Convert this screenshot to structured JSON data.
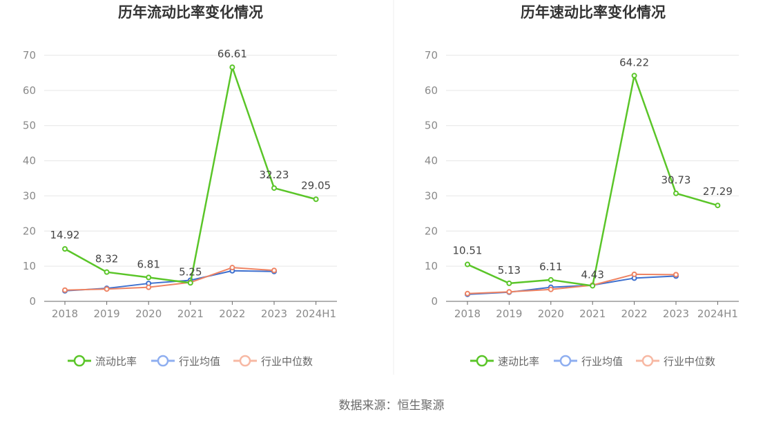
{
  "chart_data": [
    {
      "type": "line",
      "title": "历年流动比率变化情况",
      "categories": [
        "2018",
        "2019",
        "2020",
        "2021",
        "2022",
        "2023",
        "2024H1"
      ],
      "ylim": [
        0,
        70
      ],
      "yticks": [
        0,
        10,
        20,
        30,
        40,
        50,
        60,
        70
      ],
      "grid": true,
      "legend_position": "bottom",
      "series": [
        {
          "name": "流动比率",
          "color": "#5ac528",
          "values": [
            14.92,
            8.32,
            6.81,
            5.25,
            66.61,
            32.23,
            29.05
          ],
          "labels": [
            "14.92",
            "8.32",
            "6.81",
            "5.25",
            "66.61",
            "32.23",
            "29.05"
          ]
        },
        {
          "name": "行业均值",
          "color": "#3d6fce",
          "legend_color": "#8eaef0",
          "values": [
            3.0,
            3.7,
            5.1,
            6.0,
            8.7,
            8.5,
            null
          ]
        },
        {
          "name": "行业中位数",
          "color": "#ee8363",
          "legend_color": "#f7b8a3",
          "values": [
            3.2,
            3.5,
            4.0,
            5.4,
            9.6,
            8.8,
            null
          ]
        }
      ]
    },
    {
      "type": "line",
      "title": "历年速动比率变化情况",
      "categories": [
        "2018",
        "2019",
        "2020",
        "2021",
        "2022",
        "2023",
        "2024H1"
      ],
      "ylim": [
        0,
        70
      ],
      "yticks": [
        0,
        10,
        20,
        30,
        40,
        50,
        60,
        70
      ],
      "grid": true,
      "legend_position": "bottom",
      "series": [
        {
          "name": "速动比率",
          "color": "#5ac528",
          "values": [
            10.51,
            5.13,
            6.11,
            4.43,
            64.22,
            30.73,
            27.29
          ],
          "labels": [
            "10.51",
            "5.13",
            "6.11",
            "4.43",
            "64.22",
            "30.73",
            "27.29"
          ]
        },
        {
          "name": "行业均值",
          "color": "#3d6fce",
          "legend_color": "#8eaef0",
          "values": [
            2.0,
            2.6,
            4.0,
            4.6,
            6.6,
            7.2,
            null
          ]
        },
        {
          "name": "行业中位数",
          "color": "#ee8363",
          "legend_color": "#f7b8a3",
          "values": [
            2.2,
            2.7,
            3.4,
            4.6,
            7.7,
            7.6,
            null
          ]
        }
      ]
    }
  ],
  "source": "数据来源：恒生聚源"
}
